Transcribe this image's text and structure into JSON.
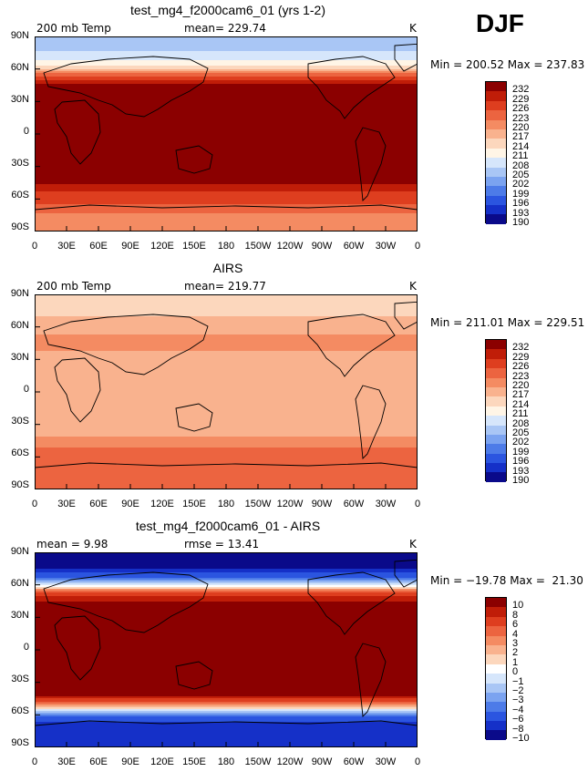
{
  "season_label": "DJF",
  "colors": {
    "warm_scale": [
      "#0a0a8a",
      "#1530c8",
      "#2b55e0",
      "#4d7be8",
      "#7ba3f0",
      "#a9c6f5",
      "#d6e6fb",
      "#fff5e6",
      "#fcd7bd",
      "#f9b28e",
      "#f48b62",
      "#ec6440",
      "#de3e1f",
      "#c01d08",
      "#8b0000"
    ],
    "diff_scale": [
      "#0a0a8a",
      "#1530c8",
      "#2b55e0",
      "#4d7be8",
      "#7ba3f0",
      "#a9c6f5",
      "#d6e6fb",
      "#ffffff",
      "#fcd7bd",
      "#f9b28e",
      "#f48b62",
      "#ec6440",
      "#de3e1f",
      "#c01d08",
      "#8b0000"
    ]
  },
  "axes": {
    "y_ticks": [
      "90N",
      "60N",
      "30N",
      "0",
      "30S",
      "60S",
      "90S"
    ],
    "x_ticks": [
      "0",
      "30E",
      "60E",
      "90E",
      "120E",
      "150E",
      "180",
      "150W",
      "120W",
      "90W",
      "60W",
      "30W",
      "0"
    ]
  },
  "panels": [
    {
      "title": "test_mg4_f2000cam6_01 (yrs 1-2)",
      "left_label": "200 mb Temp",
      "mid_label": "mean= 229.74",
      "unit": "K",
      "minmax": "Min = 200.52 Max = 237.83",
      "colorbar_labels": [
        "232",
        "229",
        "226",
        "223",
        "220",
        "217",
        "214",
        "211",
        "208",
        "205",
        "202",
        "199",
        "196",
        "193",
        "190"
      ]
    },
    {
      "title": "AIRS",
      "left_label": "200 mb Temp",
      "mid_label": "mean= 219.77",
      "unit": "K",
      "minmax": "Min = 211.01 Max = 229.51",
      "colorbar_labels": [
        "232",
        "229",
        "226",
        "223",
        "220",
        "217",
        "214",
        "211",
        "208",
        "205",
        "202",
        "199",
        "196",
        "193",
        "190"
      ]
    },
    {
      "title": "test_mg4_f2000cam6_01 - AIRS",
      "left_label": "mean =    9.98",
      "mid_label": "rmse =   13.41",
      "unit": "K",
      "minmax": "Min = −19.78 Max =  21.30",
      "colorbar_labels": [
        "10",
        "8",
        "6",
        "4",
        "3",
        "2",
        "1",
        "0",
        "−1",
        "−2",
        "−3",
        "−4",
        "−6",
        "−8",
        "−10"
      ]
    }
  ],
  "chart_data": [
    {
      "type": "heatmap",
      "title": "test_mg4_f2000cam6_01 (yrs 1-2)",
      "variable": "200 mb Temp",
      "unit": "K",
      "mean": 229.74,
      "min": 200.52,
      "max": 237.83,
      "levels": [
        190,
        193,
        196,
        199,
        202,
        205,
        208,
        211,
        214,
        217,
        220,
        223,
        226,
        229,
        232
      ],
      "lat_profile": [
        {
          "lat": 90,
          "value": 206
        },
        {
          "lat": 80,
          "value": 207
        },
        {
          "lat": 70,
          "value": 210
        },
        {
          "lat": 62,
          "value": 215
        },
        {
          "lat": 55,
          "value": 224
        },
        {
          "lat": 45,
          "value": 233
        },
        {
          "lat": 0,
          "value": 234
        },
        {
          "lat": -45,
          "value": 233
        },
        {
          "lat": -55,
          "value": 228
        },
        {
          "lat": -65,
          "value": 226
        },
        {
          "lat": -75,
          "value": 222
        },
        {
          "lat": -90,
          "value": 221
        }
      ]
    },
    {
      "type": "heatmap",
      "title": "AIRS",
      "variable": "200 mb Temp",
      "unit": "K",
      "mean": 219.77,
      "min": 211.01,
      "max": 229.51,
      "levels": [
        190,
        193,
        196,
        199,
        202,
        205,
        208,
        211,
        214,
        217,
        220,
        223,
        226,
        229,
        232
      ],
      "lat_profile": [
        {
          "lat": 90,
          "value": 215
        },
        {
          "lat": 75,
          "value": 216
        },
        {
          "lat": 60,
          "value": 219
        },
        {
          "lat": 45,
          "value": 221
        },
        {
          "lat": 30,
          "value": 219
        },
        {
          "lat": 0,
          "value": 218
        },
        {
          "lat": -30,
          "value": 217
        },
        {
          "lat": -45,
          "value": 221
        },
        {
          "lat": -55,
          "value": 224
        },
        {
          "lat": -65,
          "value": 226
        },
        {
          "lat": -80,
          "value": 225
        },
        {
          "lat": -90,
          "value": 224
        }
      ]
    },
    {
      "type": "heatmap",
      "title": "test_mg4_f2000cam6_01 - AIRS",
      "variable": "difference",
      "unit": "K",
      "mean": 9.98,
      "rmse": 13.41,
      "min": -19.78,
      "max": 21.3,
      "levels": [
        -10,
        -8,
        -6,
        -4,
        -3,
        -2,
        -1,
        0,
        1,
        2,
        3,
        4,
        6,
        8,
        10
      ],
      "lat_profile": [
        {
          "lat": 90,
          "value": -9
        },
        {
          "lat": 75,
          "value": -8
        },
        {
          "lat": 65,
          "value": -3
        },
        {
          "lat": 58,
          "value": 1
        },
        {
          "lat": 50,
          "value": 8
        },
        {
          "lat": 40,
          "value": 12
        },
        {
          "lat": 0,
          "value": 15
        },
        {
          "lat": -40,
          "value": 12
        },
        {
          "lat": -48,
          "value": 6
        },
        {
          "lat": -55,
          "value": 0
        },
        {
          "lat": -62,
          "value": -5
        },
        {
          "lat": -75,
          "value": -8
        },
        {
          "lat": -90,
          "value": -7
        }
      ]
    }
  ]
}
